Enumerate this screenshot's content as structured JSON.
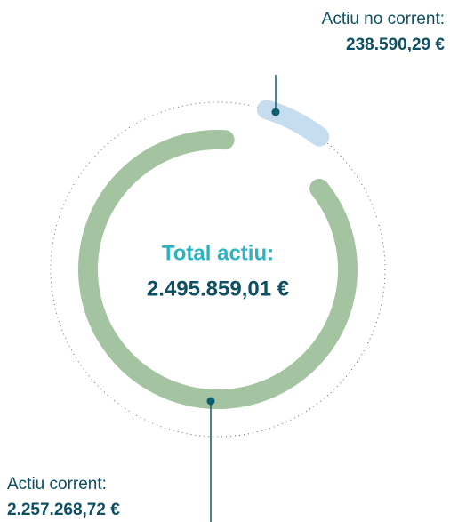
{
  "chart_data": {
    "type": "donut",
    "title": "Total actiu:",
    "total": {
      "value": 2495859.01,
      "label": "2.495.859,01 €"
    },
    "series": [
      {
        "name": "Actiu no corrent:",
        "color": "#c6dcef",
        "values": [
          238590.29
        ],
        "value_labels": [
          "238.590,29 €"
        ]
      },
      {
        "name": "Actiu corrent:",
        "color": "#a4c3a1",
        "values": [
          2257268.72
        ],
        "value_labels": [
          "2.257.268,72 €"
        ]
      }
    ]
  }
}
